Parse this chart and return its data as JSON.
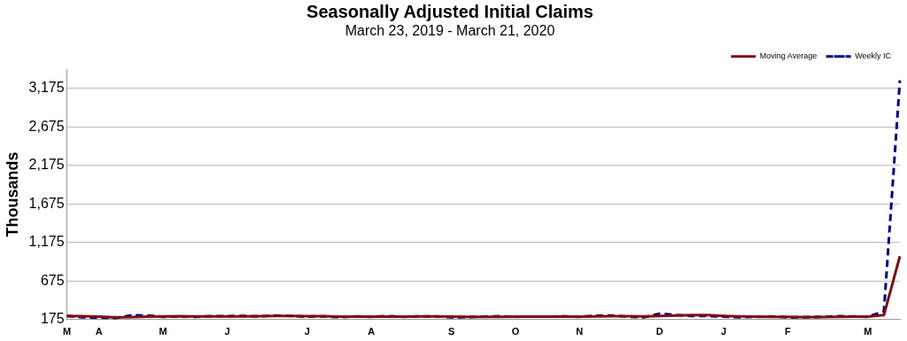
{
  "chart_data": {
    "type": "line",
    "title": "Seasonally Adjusted Initial Claims",
    "subtitle": "March 23, 2019 - March 21, 2020",
    "ylabel": "Thousands",
    "categories": [
      "M",
      null,
      "A",
      null,
      null,
      null,
      "M",
      null,
      null,
      null,
      "J",
      null,
      null,
      null,
      null,
      "J",
      null,
      null,
      null,
      "A",
      null,
      null,
      null,
      null,
      "S",
      null,
      null,
      null,
      "O",
      null,
      null,
      null,
      "N",
      null,
      null,
      null,
      null,
      "D",
      null,
      null,
      null,
      "J",
      null,
      null,
      null,
      "F",
      null,
      null,
      null,
      null,
      "M",
      null,
      null
    ],
    "series": [
      {
        "name": "Moving Average",
        "color": "#7b1113",
        "line_style": "solid",
        "values": [
          222,
          218,
          213,
          204,
          206,
          213,
          217,
          220,
          216,
          215,
          215,
          216,
          218,
          221,
          222,
          220,
          219,
          214,
          213,
          213,
          214,
          214,
          216,
          216,
          212,
          211,
          210,
          211,
          212,
          214,
          213,
          214,
          213,
          217,
          219,
          219,
          217,
          223,
          228,
          233,
          232,
          222,
          215,
          212,
          211,
          209,
          208,
          208,
          209,
          212,
          212,
          232,
          998
        ]
      },
      {
        "name": "Weekly IC",
        "color": "#000080",
        "line_style": "dashed",
        "values": [
          221,
          204,
          199,
          193,
          230,
          228,
          211,
          213,
          211,
          218,
          219,
          222,
          216,
          227,
          221,
          212,
          217,
          206,
          217,
          211,
          221,
          210,
          216,
          217,
          204,
          208,
          213,
          219,
          210,
          214,
          212,
          218,
          211,
          225,
          227,
          213,
          203,
          252,
          234,
          222,
          220,
          214,
          204,
          211,
          216,
          202,
          205,
          210,
          219,
          216,
          211,
          282,
          3283
        ]
      }
    ],
    "ylim": [
      175,
      3425
    ],
    "yticks": [
      175,
      {
        "value": 675,
        "label": "675"
      },
      {
        "value": 1175,
        "label": "1,175"
      },
      {
        "value": 1675,
        "label": "1,675"
      },
      {
        "value": 2175,
        "label": "2,175"
      },
      {
        "value": 2675,
        "label": "2,675"
      },
      {
        "value": 3175,
        "label": "3,175"
      }
    ],
    "grid": "y",
    "legend": "top right",
    "marker": "none"
  }
}
